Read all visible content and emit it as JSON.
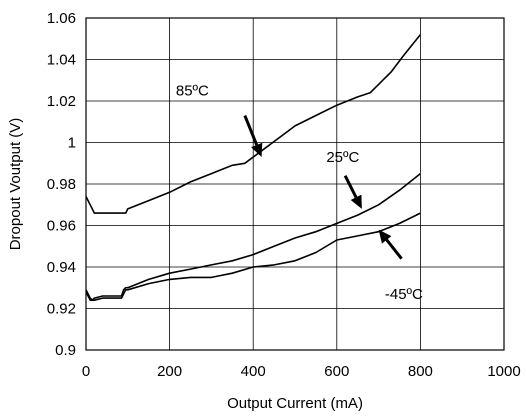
{
  "chart_data": {
    "type": "line",
    "title": "",
    "xlabel": "Output Current (mA)",
    "ylabel": "Dropout Voutput (V)",
    "xlim": [
      0,
      1000
    ],
    "ylim": [
      0.9,
      1.06
    ],
    "xticks": [
      0,
      200,
      400,
      600,
      800,
      1000
    ],
    "yticks": [
      0.9,
      0.92,
      0.94,
      0.96,
      0.98,
      1.0,
      1.02,
      1.04,
      1.06
    ],
    "xtick_labels": [
      "0",
      "200",
      "400",
      "600",
      "800",
      "1000"
    ],
    "ytick_labels": [
      "0.9",
      "0.92",
      "0.94",
      "0.96",
      "0.98",
      "1",
      "1.02",
      "1.04",
      "1.06"
    ],
    "grid": true,
    "series": [
      {
        "name": "85ºC",
        "color": "#000000",
        "x": [
          0,
          10,
          20,
          50,
          95,
          100,
          150,
          200,
          250,
          300,
          350,
          380,
          420,
          460,
          500,
          550,
          600,
          650,
          680,
          700,
          730,
          760,
          800
        ],
        "y": [
          0.974,
          0.97,
          0.966,
          0.966,
          0.966,
          0.968,
          0.972,
          0.976,
          0.981,
          0.985,
          0.989,
          0.99,
          0.996,
          1.002,
          1.008,
          1.013,
          1.018,
          1.022,
          1.024,
          1.028,
          1.034,
          1.042,
          1.052
        ]
      },
      {
        "name": "25ºC",
        "color": "#000000",
        "x": [
          0,
          5,
          10,
          15,
          20,
          40,
          60,
          85,
          90,
          95,
          100,
          150,
          200,
          250,
          300,
          350,
          400,
          450,
          500,
          550,
          600,
          650,
          700,
          750,
          800
        ],
        "y": [
          0.929,
          0.927,
          0.925,
          0.924,
          0.925,
          0.926,
          0.926,
          0.926,
          0.929,
          0.93,
          0.93,
          0.934,
          0.937,
          0.939,
          0.941,
          0.943,
          0.946,
          0.95,
          0.954,
          0.957,
          0.961,
          0.965,
          0.97,
          0.977,
          0.985
        ]
      },
      {
        "name": "-45ºC",
        "color": "#000000",
        "x": [
          0,
          5,
          10,
          15,
          20,
          40,
          60,
          85,
          90,
          95,
          100,
          150,
          200,
          250,
          300,
          350,
          400,
          450,
          500,
          550,
          600,
          650,
          700,
          750,
          800
        ],
        "y": [
          0.928,
          0.926,
          0.924,
          0.924,
          0.924,
          0.925,
          0.925,
          0.925,
          0.927,
          0.929,
          0.929,
          0.932,
          0.934,
          0.935,
          0.935,
          0.937,
          0.94,
          0.941,
          0.943,
          0.947,
          0.953,
          0.955,
          0.957,
          0.961,
          0.966
        ]
      }
    ],
    "annotations": [
      {
        "text": "85ºC",
        "label_x": 215,
        "label_y": 1.025,
        "arrow_from": [
          380,
          1.013
        ],
        "arrow_to": [
          420,
          0.993
        ]
      },
      {
        "text": "25ºC",
        "label_x": 575,
        "label_y": 0.993,
        "arrow_from": [
          620,
          0.984
        ],
        "arrow_to": [
          660,
          0.968
        ]
      },
      {
        "text": "-45ºC",
        "label_x": 715,
        "label_y": 0.927,
        "arrow_from": [
          755,
          0.944
        ],
        "arrow_to": [
          700,
          0.958
        ]
      }
    ]
  }
}
